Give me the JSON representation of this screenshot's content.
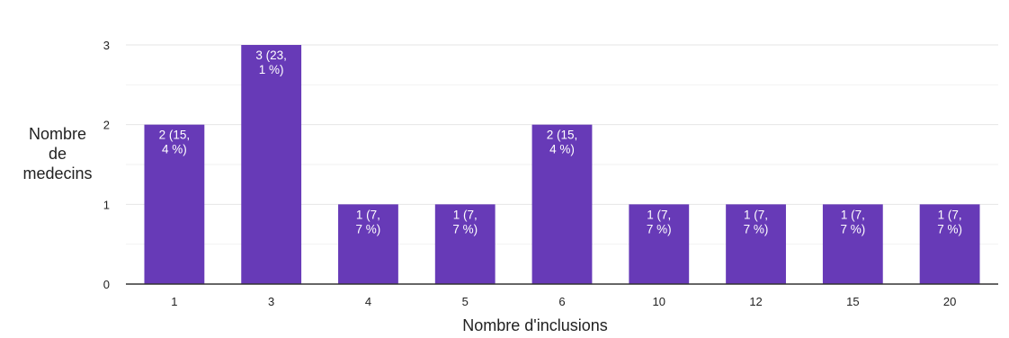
{
  "chart_data": {
    "type": "bar",
    "xlabel": "Nombre d'inclusions",
    "ylabel_lines": [
      "Nombre",
      "de",
      "medecins"
    ],
    "categories": [
      "1",
      "3",
      "4",
      "5",
      "6",
      "10",
      "12",
      "15",
      "20"
    ],
    "values": [
      2,
      3,
      1,
      1,
      2,
      1,
      1,
      1,
      1
    ],
    "data_labels": [
      [
        "2 (15,",
        "4 %)"
      ],
      [
        "3 (23,",
        "1 %)"
      ],
      [
        "1 (7,",
        "7 %)"
      ],
      [
        "1 (7,",
        "7 %)"
      ],
      [
        "2 (15,",
        "4 %)"
      ],
      [
        "1 (7,",
        "7 %)"
      ],
      [
        "1 (7,",
        "7 %)"
      ],
      [
        "1 (7,",
        "7 %)"
      ],
      [
        "1 (7,",
        "7 %)"
      ]
    ],
    "ylim": [
      0,
      3
    ],
    "yticks": [
      0,
      1,
      2,
      3
    ],
    "grid": true,
    "legend": "none",
    "colors": {
      "bar": "#673ab7",
      "gridline": "#e6e6e6",
      "minor_gridline": "#f2f2f2",
      "axis": "#333333"
    }
  }
}
